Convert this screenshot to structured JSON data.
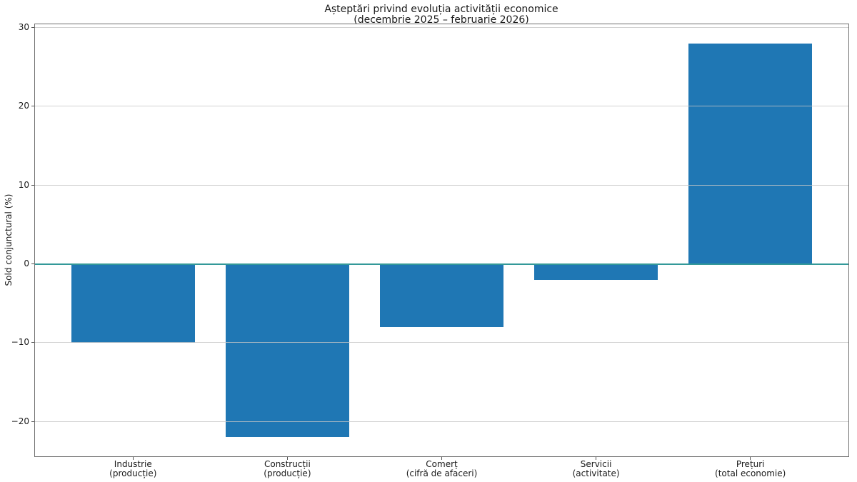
{
  "chart_data": {
    "type": "bar",
    "title": "Așteptări privind evoluția activității economice",
    "subtitle": "(decembrie 2025 – februarie 2026)",
    "ylabel": "Sold conjunctural (%)",
    "xlabel": "",
    "categories": [
      {
        "line1": "Industrie",
        "line2": "(producție)"
      },
      {
        "line1": "Construcții",
        "line2": "(producție)"
      },
      {
        "line1": "Comerț",
        "line2": "(cifră de afaceri)"
      },
      {
        "line1": "Servicii",
        "line2": "(activitate)"
      },
      {
        "line1": "Prețuri",
        "line2": "(total economie)"
      }
    ],
    "values": [
      -10,
      -22,
      -8,
      -2,
      28
    ],
    "ylim": [
      -24.5,
      30.5
    ],
    "yticks": [
      30,
      20,
      10,
      0,
      -10,
      -20
    ],
    "ytick_labels": [
      "30",
      "20",
      "10",
      "0",
      "−10",
      "−20"
    ],
    "grid": true,
    "legend_position": "none",
    "colors": {
      "bar": "#1f77b4",
      "zero_line": "#339999",
      "grid": "#d4d4d4",
      "spine": "#707070",
      "background": "#ffffff"
    }
  }
}
